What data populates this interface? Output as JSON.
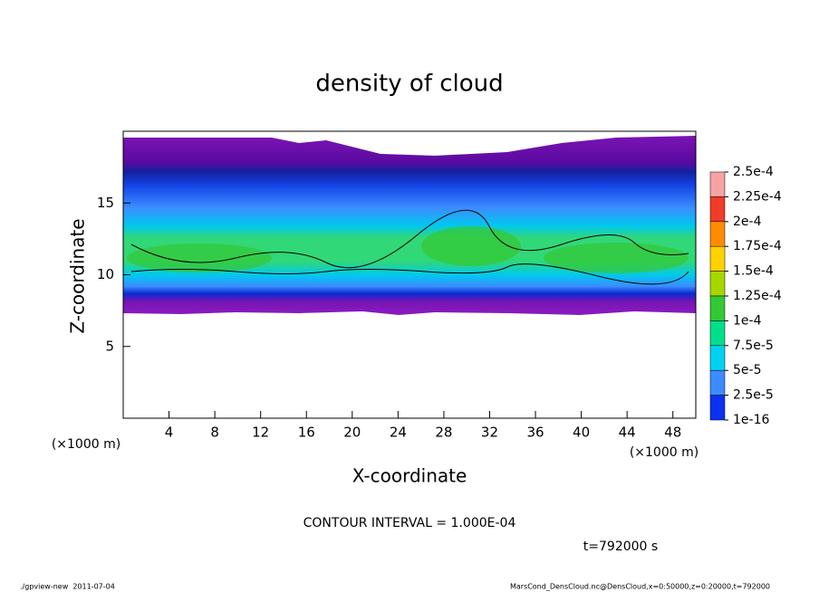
{
  "chart_data": {
    "type": "contour",
    "title": "density of cloud",
    "x_label": "X-coordinate",
    "y_label": "Z-coordinate",
    "y_unit": "(×1000 m)",
    "x_unit": "(×1000 m)",
    "xlim": [
      0,
      50
    ],
    "xticks": [
      4,
      8,
      12,
      16,
      20,
      24,
      28,
      32,
      36,
      40,
      44,
      48
    ],
    "ylim": [
      0,
      20
    ],
    "yticks": [
      5,
      10,
      15
    ],
    "levels": [
      {
        "value": 0.00025,
        "label": "2.5e-4"
      },
      {
        "value": 0.000225,
        "label": "2.25e-4"
      },
      {
        "value": 0.0002,
        "label": "2e-4"
      },
      {
        "value": 0.000175,
        "label": "1.75e-4"
      },
      {
        "value": 0.00015,
        "label": "1.5e-4"
      },
      {
        "value": 0.000125,
        "label": "1.25e-4"
      },
      {
        "value": 0.0001,
        "label": "1e-4"
      },
      {
        "value": 7.5e-05,
        "label": "7.5e-5"
      },
      {
        "value": 5e-05,
        "label": "5e-5"
      },
      {
        "value": 2.5e-05,
        "label": "2.5e-5"
      },
      {
        "value": 1e-16,
        "label": "1e-16"
      }
    ],
    "colors": [
      "#f5a3a3",
      "#f03c28",
      "#ff8c00",
      "#ffd200",
      "#a6d800",
      "#34c834",
      "#00e08c",
      "#00d2f0",
      "#3c8cff",
      "#0a32f0"
    ],
    "contour_interval": "CONTOUR INTERVAL = 1.000E-04",
    "time_label": "t=792000 s",
    "footer_left": "./gpview-new  2011-07-04",
    "footer_right": "MarsCond_DensCloud.nc@DensCloud,x=0:50000,z=0:20000,t=792000"
  }
}
